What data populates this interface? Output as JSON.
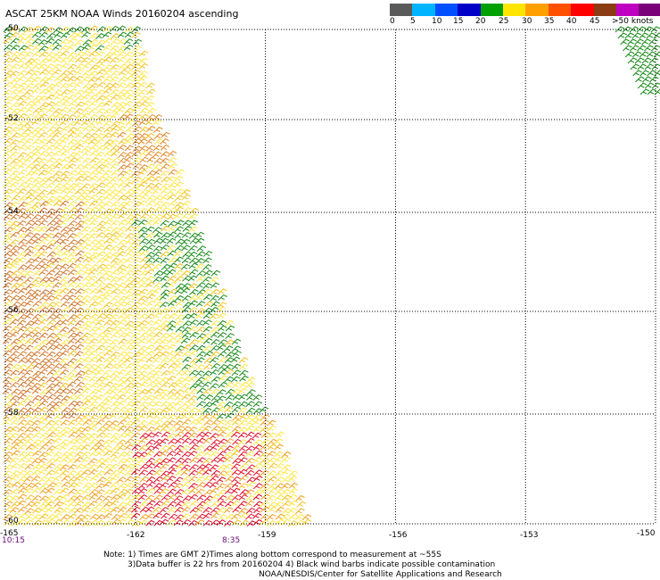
{
  "header": {
    "title": "ASCAT 25KM NOAA Winds 20160204 ascending"
  },
  "legend": {
    "colors": [
      "#5a5a5a",
      "#00b4ff",
      "#0050ff",
      "#0000c8",
      "#00a000",
      "#ffe600",
      "#ffa000",
      "#ff5000",
      "#ff0000",
      "#8b3c14",
      "#c000c0",
      "#7a007a"
    ],
    "labels": [
      "0",
      "5",
      "10",
      "15",
      "20",
      "25",
      "30",
      "35",
      "40",
      "45",
      ">50 knots"
    ]
  },
  "map": {
    "lat_labels": [
      "-50",
      "-52",
      "-54",
      "-56",
      "-58",
      "-60"
    ],
    "lon_labels": [
      "-165",
      "-162",
      "-159",
      "-156",
      "-153",
      "-150"
    ],
    "time_start": "10:15",
    "time_mid": "8:35"
  },
  "notes": {
    "line1": "Note: 1) Times are GMT 2)Times along bottom correspond to measurement at ~55S",
    "line2": "3)Data buffer is 22 hrs from 20160204 4) Black wind barbs indicate possible contamination",
    "line3": "NOAA/NESDIS/Center for Satellite Applications and Research"
  }
}
